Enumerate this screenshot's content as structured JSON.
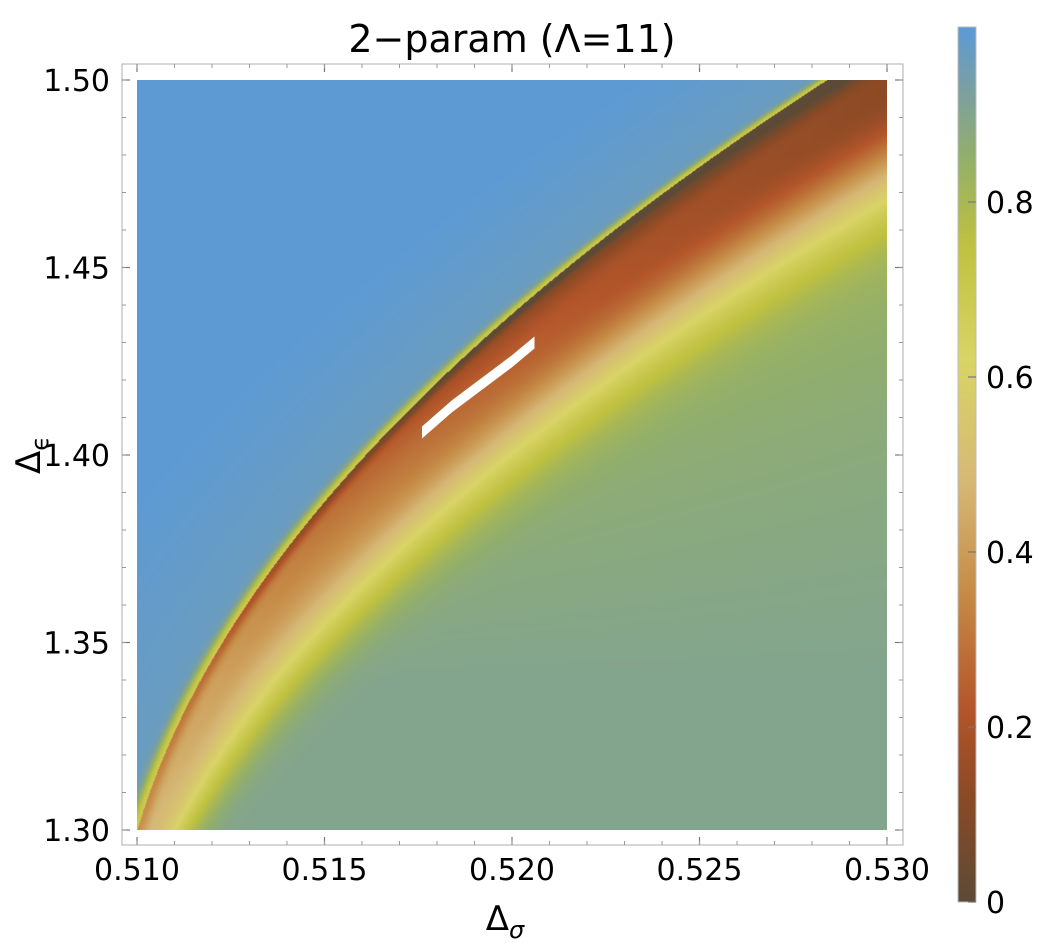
{
  "chart_data": {
    "type": "heatmap",
    "title": "2−param (Λ=11)",
    "xlabel": "Δ",
    "xlabel_sub": "σ",
    "ylabel": "Δ",
    "ylabel_sub": "ϵ",
    "xlim": [
      0.51,
      0.53
    ],
    "ylim": [
      1.3,
      1.5
    ],
    "x_ticks": [
      0.51,
      0.515,
      0.52,
      0.525,
      0.53
    ],
    "x_tick_labels": [
      "0.510",
      "0.515",
      "0.520",
      "0.525",
      "0.530"
    ],
    "y_ticks": [
      1.3,
      1.35,
      1.4,
      1.45,
      1.5
    ],
    "y_tick_labels": [
      "1.30",
      "1.35",
      "1.40",
      "1.45",
      "1.50"
    ],
    "colorbar": {
      "range": [
        0,
        1
      ],
      "ticks": [
        0,
        0.2,
        0.4,
        0.6,
        0.8
      ],
      "tick_labels": [
        "0",
        "0.2",
        "0.4",
        "0.6",
        "0.8"
      ],
      "colors": [
        {
          "value": 0.0,
          "color": "#5d4a36"
        },
        {
          "value": 0.12,
          "color": "#8a4a25"
        },
        {
          "value": 0.22,
          "color": "#b3552a"
        },
        {
          "value": 0.35,
          "color": "#c58a45"
        },
        {
          "value": 0.48,
          "color": "#d6b876"
        },
        {
          "value": 0.62,
          "color": "#d9d466"
        },
        {
          "value": 0.75,
          "color": "#bfc140"
        },
        {
          "value": 0.85,
          "color": "#93af6a"
        },
        {
          "value": 0.93,
          "color": "#7a9fa3"
        },
        {
          "value": 1.0,
          "color": "#5b9ad8"
        }
      ]
    },
    "allowed_region": {
      "color": "#ffffff",
      "x": [
        0.5176,
        0.5184,
        0.5192,
        0.52,
        0.5206
      ],
      "y": [
        1.406,
        1.413,
        1.419,
        1.425,
        1.43
      ]
    }
  }
}
